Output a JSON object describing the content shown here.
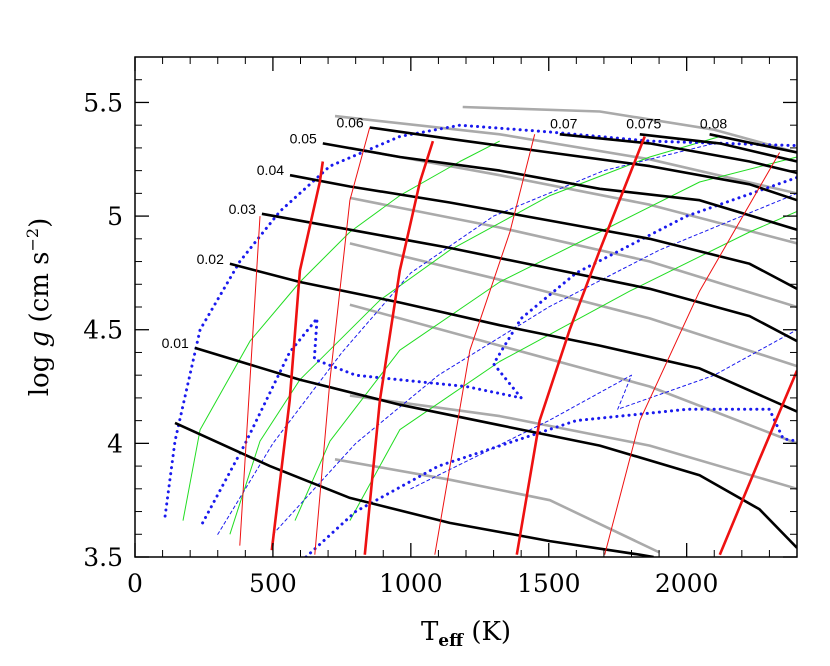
{
  "chart_data": {
    "type": "line",
    "xlabel_parts": [
      "T",
      "eff",
      " (K)"
    ],
    "ylabel_parts": [
      "log ",
      "g",
      " (cm s",
      "−2",
      ")"
    ],
    "xlim": [
      0,
      2400
    ],
    "ylim": [
      3.5,
      5.7
    ],
    "xticks": [
      0,
      500,
      1000,
      1500,
      2000
    ],
    "yticks": [
      3.5,
      4,
      4.5,
      5,
      5.5
    ],
    "xminorticks": [
      100,
      200,
      300,
      400,
      600,
      700,
      800,
      900,
      1100,
      1200,
      1300,
      1400,
      1600,
      1700,
      1800,
      1900,
      2100,
      2200,
      2300
    ],
    "yminorticks": [
      3.6,
      3.7,
      3.8,
      3.9,
      4.1,
      4.2,
      4.3,
      4.4,
      4.6,
      4.7,
      4.8,
      4.9,
      5.1,
      5.2,
      5.3,
      5.4,
      5.6
    ],
    "series": [
      {
        "color": "#aaaaaa",
        "weight": "thick",
        "style": "solid",
        "x": [
          725,
          1141,
          1504,
          1902
        ],
        "values": [
          3.93,
          3.84,
          3.75,
          3.52
        ]
      },
      {
        "color": "#aaaaaa",
        "weight": "thick",
        "style": "solid",
        "x": [
          779,
          1322,
          1866,
          2400
        ],
        "values": [
          4.21,
          4.12,
          3.99,
          3.8
        ]
      },
      {
        "color": "#aaaaaa",
        "weight": "thick",
        "style": "solid",
        "x": [
          779,
          1322,
          1866,
          2400
        ],
        "values": [
          4.61,
          4.43,
          4.25,
          4.0
        ]
      },
      {
        "color": "#aaaaaa",
        "weight": "thick",
        "style": "solid",
        "x": [
          779,
          1322,
          1866,
          2400
        ],
        "values": [
          4.88,
          4.72,
          4.55,
          4.34
        ]
      },
      {
        "color": "#aaaaaa",
        "weight": "thick",
        "style": "solid",
        "x": [
          779,
          1322,
          1866,
          2400
        ],
        "values": [
          5.08,
          4.95,
          4.8,
          4.6
        ]
      },
      {
        "color": "#aaaaaa",
        "weight": "thick",
        "style": "solid",
        "x": [
          779,
          1322,
          1866,
          2400
        ],
        "values": [
          5.3,
          5.18,
          5.05,
          4.88
        ]
      },
      {
        "color": "#aaaaaa",
        "weight": "thick",
        "style": "solid",
        "x": [
          725,
          1322,
          1866,
          2400
        ],
        "values": [
          5.44,
          5.36,
          5.25,
          5.1
        ]
      },
      {
        "color": "#aaaaaa",
        "weight": "thick",
        "style": "solid",
        "x": [
          1188,
          1685,
          2100,
          2400
        ],
        "values": [
          5.48,
          5.46,
          5.38,
          5.28
        ]
      },
      {
        "color": "#22dd22",
        "weight": "thin",
        "style": "solid",
        "x": [
          174,
          236,
          417,
          598,
          779,
          960,
          1178,
          1322
        ],
        "values": [
          3.66,
          4.06,
          4.45,
          4.71,
          4.93,
          5.09,
          5.24,
          5.33
        ]
      },
      {
        "color": "#22dd22",
        "weight": "thin",
        "style": "solid",
        "x": [
          344,
          453,
          598,
          888,
          1141,
          1504,
          1866,
          2120
        ],
        "values": [
          3.6,
          4.01,
          4.28,
          4.63,
          4.85,
          5.09,
          5.26,
          5.35
        ]
      },
      {
        "color": "#22dd22",
        "weight": "thin",
        "style": "solid",
        "x": [
          580,
          707,
          960,
          1322,
          1685,
          2047,
          2400
        ],
        "values": [
          3.66,
          4.01,
          4.41,
          4.71,
          4.93,
          5.15,
          5.26
        ]
      },
      {
        "color": "#22dd22",
        "weight": "thin",
        "style": "solid",
        "x": [
          779,
          960,
          1322,
          1794,
          2228,
          2400
        ],
        "values": [
          3.66,
          4.06,
          4.36,
          4.67,
          4.93,
          5.02
        ]
      },
      {
        "color": "#1a1aee",
        "weight": "thin",
        "style": "dotted",
        "x": [
          300,
          500,
          750,
          1000,
          1300,
          1700,
          2100
        ],
        "values": [
          3.6,
          4.0,
          4.4,
          4.75,
          5.0,
          5.2,
          5.32
        ]
      },
      {
        "color": "#1a1aee",
        "weight": "thin",
        "style": "dotted",
        "x": [
          500,
          800,
          1100,
          1500,
          1900,
          2400
        ],
        "values": [
          3.6,
          4.0,
          4.3,
          4.6,
          4.85,
          5.1
        ]
      },
      {
        "color": "#1a1aee",
        "weight": "thin",
        "style": "dotted",
        "x": [
          1000,
          1500,
          1800,
          1750,
          2100,
          2400
        ],
        "values": [
          3.8,
          4.1,
          4.3,
          4.15,
          4.3,
          4.5
        ]
      },
      {
        "color": "#1a1aee",
        "weight": "thick",
        "style": "dotted",
        "x": [
          109,
          145,
          236,
          380,
          525,
          707,
          960,
          1178,
          1504,
          1866,
          2400
        ],
        "values": [
          3.68,
          4.01,
          4.5,
          4.8,
          5.02,
          5.22,
          5.35,
          5.4,
          5.37,
          5.33,
          5.31
        ]
      },
      {
        "color": "#1a1aee",
        "weight": "thick",
        "style": "dotted",
        "x": [
          245,
          400,
          560,
          660,
          650,
          800,
          1200,
          1400,
          1300,
          1400,
          1600,
          2000,
          2400
        ],
        "values": [
          3.65,
          4.0,
          4.4,
          4.55,
          4.37,
          4.3,
          4.25,
          4.2,
          4.35,
          4.55,
          4.75,
          5.0,
          5.17
        ]
      },
      {
        "color": "#1a1aee",
        "weight": "thick",
        "style": "dotted",
        "x": [
          620,
          800,
          1100,
          1600,
          2000,
          2300,
          2350,
          2400
        ],
        "values": [
          3.5,
          3.7,
          3.9,
          4.1,
          4.15,
          4.15,
          4.02,
          4.01
        ]
      },
      {
        "color": "#000000",
        "weight": "thick",
        "style": "solid",
        "x": [
          145,
          489,
          779,
          1141,
          1504,
          1830,
          1880
        ],
        "values": [
          4.09,
          3.9,
          3.76,
          3.65,
          3.57,
          3.51,
          3.5
        ]
      },
      {
        "name": "0.01",
        "color": "#000000",
        "weight": "thick",
        "style": "solid",
        "x": [
          217,
          598,
          960,
          1322,
          1685,
          2047,
          2264,
          2400
        ],
        "values": [
          4.42,
          4.28,
          4.17,
          4.08,
          3.99,
          3.86,
          3.71,
          3.54
        ]
      },
      {
        "name": "0.02",
        "color": "#000000",
        "weight": "thick",
        "style": "solid",
        "x": [
          344,
          598,
          960,
          1322,
          1685,
          2047,
          2400
        ],
        "values": [
          4.79,
          4.71,
          4.62,
          4.52,
          4.43,
          4.33,
          4.14
        ]
      },
      {
        "name": "0.03",
        "color": "#000000",
        "weight": "thick",
        "style": "solid",
        "x": [
          460,
          779,
          1141,
          1504,
          1866,
          2228,
          2400
        ],
        "values": [
          5.01,
          4.94,
          4.86,
          4.77,
          4.68,
          4.56,
          4.45
        ]
      },
      {
        "name": "0.04",
        "color": "#000000",
        "weight": "thick",
        "style": "solid",
        "x": [
          562,
          779,
          1141,
          1504,
          1866,
          2228,
          2400
        ],
        "values": [
          5.18,
          5.13,
          5.06,
          4.98,
          4.9,
          4.79,
          4.68
        ]
      },
      {
        "name": "0.05",
        "color": "#000000",
        "weight": "thick",
        "style": "solid",
        "x": [
          681,
          960,
          1322,
          1685,
          2047,
          2400
        ],
        "values": [
          5.32,
          5.26,
          5.2,
          5.12,
          5.07,
          4.94
        ]
      },
      {
        "name": "0.06",
        "color": "#000000",
        "weight": "thick",
        "style": "solid",
        "x": [
          851,
          1141,
          1504,
          1866,
          2228,
          2400
        ],
        "values": [
          5.39,
          5.34,
          5.28,
          5.22,
          5.14,
          5.07
        ]
      },
      {
        "name": "0.07",
        "color": "#000000",
        "weight": "thick",
        "style": "solid",
        "x": [
          1540,
          1866,
          2228,
          2400
        ],
        "values": [
          5.36,
          5.32,
          5.24,
          5.19
        ]
      },
      {
        "name": "0.075",
        "color": "#000000",
        "weight": "thick",
        "style": "solid",
        "x": [
          1830,
          2120,
          2400
        ],
        "values": [
          5.36,
          5.32,
          5.24
        ]
      },
      {
        "name": "0.08",
        "color": "#000000",
        "weight": "thick",
        "style": "solid",
        "x": [
          2083,
          2400
        ],
        "values": [
          5.36,
          5.28
        ]
      },
      {
        "color": "#ee1111",
        "weight": "thin",
        "style": "solid",
        "x": [
          380,
          417,
          453
        ],
        "values": [
          3.55,
          4.28,
          5.0
        ]
      },
      {
        "color": "#ee1111",
        "weight": "thin",
        "style": "solid",
        "x": [
          652,
          707,
          779,
          851
        ],
        "values": [
          3.51,
          4.28,
          5.07,
          5.39
        ]
      },
      {
        "color": "#ee1111",
        "weight": "thin",
        "style": "solid",
        "x": [
          1087,
          1214,
          1359,
          1449
        ],
        "values": [
          3.51,
          4.41,
          4.93,
          5.36
        ]
      },
      {
        "color": "#ee1111",
        "weight": "thin",
        "style": "solid",
        "x": [
          1703,
          1830,
          2047,
          2337
        ],
        "values": [
          3.51,
          4.1,
          4.67,
          5.28
        ]
      },
      {
        "color": "#ee1111",
        "weight": "thick",
        "style": "solid",
        "x": [
          496,
          561,
          598,
          670,
          681
        ],
        "values": [
          3.53,
          4.19,
          4.76,
          5.15,
          5.24
        ]
      },
      {
        "color": "#ee1111",
        "weight": "thick",
        "style": "solid",
        "x": [
          833,
          888,
          960,
          1033,
          1080
        ],
        "values": [
          3.51,
          4.19,
          4.76,
          5.15,
          5.33
        ]
      },
      {
        "color": "#ee1111",
        "weight": "thick",
        "style": "solid",
        "x": [
          1384,
          1467,
          1576,
          1685,
          1848
        ],
        "values": [
          3.51,
          4.1,
          4.5,
          4.85,
          5.35
        ]
      },
      {
        "color": "#ee1111",
        "weight": "thick",
        "style": "solid",
        "x": [
          2120,
          2264,
          2400
        ],
        "values": [
          3.51,
          3.93,
          4.32
        ]
      }
    ]
  }
}
